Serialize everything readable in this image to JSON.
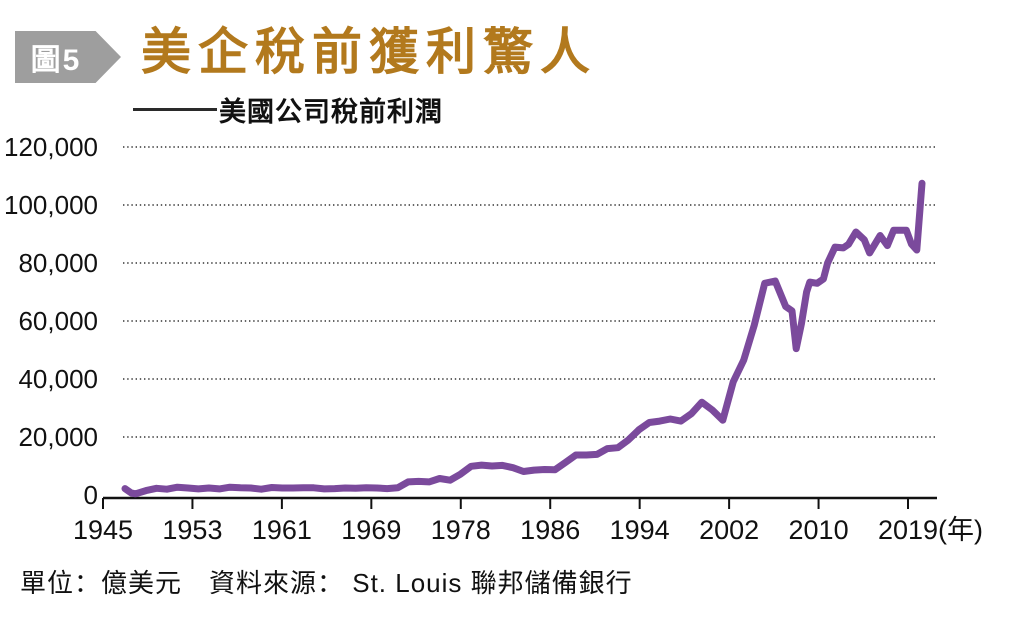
{
  "figure": {
    "badge": "圖5",
    "title": "美企稅前獲利驚人",
    "legend": "美國公司稅前利潤",
    "footer": "單位：億美元　資料來源： St. Louis 聯邦儲備銀行"
  },
  "colors": {
    "title": "#B2791D",
    "badge_bg": "#9E9E9E",
    "badge_text": "#FFFFFF",
    "line": "#7B4A9C",
    "grid": "#333333",
    "axis": "#111111",
    "text": "#111111"
  },
  "chart_data": {
    "type": "line",
    "title": "美企稅前獲利驚人",
    "series_name": "美國公司稅前利潤",
    "unit": "億美元",
    "source": "St. Louis 聯邦儲備銀行",
    "grid": "dotted-horizontal",
    "legend_position": "top-left",
    "xlabel": "年",
    "ylabel": "",
    "ylim": [
      0,
      120000
    ],
    "y_ticks": [
      0,
      20000,
      40000,
      60000,
      80000,
      100000,
      120000
    ],
    "x_tick_labels": [
      "1945",
      "1953",
      "1961",
      "1969",
      "1978",
      "1986",
      "1994",
      "2002",
      "2010",
      "2019"
    ],
    "x_axis_suffix": "(年)",
    "points": [
      [
        1945,
        2200
      ],
      [
        1945.6,
        700
      ],
      [
        1946,
        400
      ],
      [
        1947,
        1500
      ],
      [
        1948,
        2300
      ],
      [
        1949,
        2000
      ],
      [
        1950,
        2700
      ],
      [
        1951,
        2400
      ],
      [
        1952,
        2100
      ],
      [
        1953,
        2400
      ],
      [
        1954,
        2100
      ],
      [
        1955,
        2700
      ],
      [
        1956,
        2500
      ],
      [
        1957,
        2400
      ],
      [
        1958,
        2000
      ],
      [
        1959,
        2600
      ],
      [
        1960,
        2400
      ],
      [
        1961,
        2400
      ],
      [
        1962,
        2500
      ],
      [
        1963,
        2500
      ],
      [
        1964,
        2100
      ],
      [
        1965,
        2200
      ],
      [
        1966,
        2400
      ],
      [
        1967,
        2300
      ],
      [
        1968,
        2500
      ],
      [
        1969,
        2400
      ],
      [
        1970,
        2200
      ],
      [
        1971,
        2500
      ],
      [
        1972,
        4500
      ],
      [
        1973,
        4700
      ],
      [
        1974,
        4500
      ],
      [
        1975,
        5700
      ],
      [
        1976,
        5100
      ],
      [
        1977,
        7200
      ],
      [
        1978,
        9900
      ],
      [
        1979,
        10300
      ],
      [
        1980,
        10000
      ],
      [
        1981,
        10200
      ],
      [
        1982,
        9400
      ],
      [
        1983,
        8100
      ],
      [
        1984,
        8600
      ],
      [
        1985,
        8800
      ],
      [
        1986,
        8700
      ],
      [
        1987,
        11200
      ],
      [
        1988,
        13800
      ],
      [
        1989,
        13800
      ],
      [
        1990,
        14000
      ],
      [
        1991,
        16000
      ],
      [
        1992,
        16300
      ],
      [
        1993,
        19000
      ],
      [
        1994,
        22500
      ],
      [
        1995,
        25000
      ],
      [
        1996,
        25500
      ],
      [
        1997,
        26200
      ],
      [
        1998,
        25500
      ],
      [
        1999,
        28000
      ],
      [
        2000,
        32000
      ],
      [
        2001,
        29300
      ],
      [
        2002,
        25800
      ],
      [
        2003,
        39000
      ],
      [
        2004,
        46500
      ],
      [
        2005,
        58500
      ],
      [
        2006,
        73000
      ],
      [
        2007,
        73800
      ],
      [
        2008,
        65000
      ],
      [
        2008.6,
        63500
      ],
      [
        2009,
        50500
      ],
      [
        2009.5,
        59000
      ],
      [
        2010,
        70000
      ],
      [
        2010.3,
        73400
      ],
      [
        2011,
        73000
      ],
      [
        2011.6,
        74500
      ],
      [
        2012,
        80000
      ],
      [
        2012.7,
        85500
      ],
      [
        2013.5,
        85200
      ],
      [
        2014,
        86500
      ],
      [
        2014.7,
        90700
      ],
      [
        2015.5,
        88000
      ],
      [
        2016,
        83500
      ],
      [
        2017,
        89500
      ],
      [
        2017.7,
        86000
      ],
      [
        2018.3,
        91300
      ],
      [
        2019.5,
        91300
      ],
      [
        2020,
        86500
      ],
      [
        2020.5,
        84500
      ],
      [
        2021,
        107500
      ]
    ]
  }
}
